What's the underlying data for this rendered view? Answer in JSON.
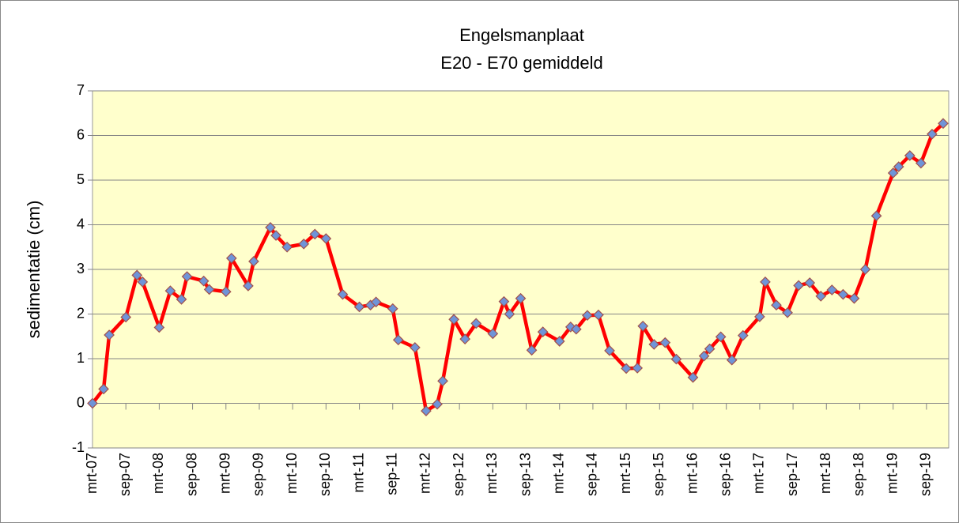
{
  "chart_data": {
    "type": "line",
    "title": "Engelsmanplaat",
    "subtitle": "E20 - E70 gemiddeld",
    "ylabel": "sedimentatie (cm)",
    "x": [
      "2007-03",
      "2007-05",
      "2007-06",
      "2007-09",
      "2007-11",
      "2007-12",
      "2008-03",
      "2008-05",
      "2008-07",
      "2008-08",
      "2008-11",
      "2008-12",
      "2009-03",
      "2009-04",
      "2009-07",
      "2009-08",
      "2009-11",
      "2009-12",
      "2010-02",
      "2010-05",
      "2010-07",
      "2010-09",
      "2010-12",
      "2011-03",
      "2011-05",
      "2011-06",
      "2011-09",
      "2011-10",
      "2012-01",
      "2012-03",
      "2012-05",
      "2012-06",
      "2012-08",
      "2012-10",
      "2012-12",
      "2013-03",
      "2013-05",
      "2013-06",
      "2013-08",
      "2013-10",
      "2013-12",
      "2014-03",
      "2014-05",
      "2014-06",
      "2014-08",
      "2014-10",
      "2014-12",
      "2015-03",
      "2015-05",
      "2015-06",
      "2015-08",
      "2015-10",
      "2015-12",
      "2016-03",
      "2016-05",
      "2016-06",
      "2016-08",
      "2016-10",
      "2016-12",
      "2017-03",
      "2017-04",
      "2017-06",
      "2017-08",
      "2017-10",
      "2017-12",
      "2018-02",
      "2018-04",
      "2018-06",
      "2018-08",
      "2018-10",
      "2018-12",
      "2019-03",
      "2019-04",
      "2019-06",
      "2019-08",
      "2019-10",
      "2019-12"
    ],
    "series": [
      {
        "name": "E20 - E70 gemiddeld",
        "color": "#ff0000",
        "marker_color": "#6f94d8",
        "marker_edge": "#a0504d",
        "values": [
          0,
          0.32,
          1.53,
          1.93,
          2.87,
          2.72,
          1.7,
          2.52,
          2.33,
          2.84,
          2.74,
          2.55,
          2.5,
          3.25,
          2.63,
          3.18,
          3.94,
          3.76,
          3.5,
          3.57,
          3.79,
          3.69,
          2.44,
          2.16,
          2.2,
          2.27,
          2.12,
          1.42,
          1.25,
          -0.17,
          -0.02,
          0.5,
          1.88,
          1.44,
          1.79,
          1.56,
          2.28,
          2.0,
          2.35,
          1.19,
          1.6,
          1.39,
          1.71,
          1.66,
          1.97,
          1.98,
          1.18,
          0.78,
          0.79,
          1.73,
          1.32,
          1.36,
          0.99,
          0.58,
          1.06,
          1.22,
          1.49,
          0.97,
          1.52,
          1.94,
          2.72,
          2.2,
          2.03,
          2.64,
          2.7,
          2.4,
          2.54,
          2.44,
          2.35,
          3.0,
          4.2,
          5.16,
          5.3,
          5.55,
          5.38,
          6.03,
          6.27
        ]
      }
    ],
    "xlim": [
      "2007-03",
      "2020-01"
    ],
    "xticks": [
      {
        "value": "2007-03",
        "label": "mrt-07"
      },
      {
        "value": "2007-09",
        "label": "sep-07"
      },
      {
        "value": "2008-03",
        "label": "mrt-08"
      },
      {
        "value": "2008-09",
        "label": "sep-08"
      },
      {
        "value": "2009-03",
        "label": "mrt-09"
      },
      {
        "value": "2009-09",
        "label": "sep-09"
      },
      {
        "value": "2010-03",
        "label": "mrt-10"
      },
      {
        "value": "2010-09",
        "label": "sep-10"
      },
      {
        "value": "2011-03",
        "label": "mrt-11"
      },
      {
        "value": "2011-09",
        "label": "sep-11"
      },
      {
        "value": "2012-03",
        "label": "mrt-12"
      },
      {
        "value": "2012-09",
        "label": "sep-12"
      },
      {
        "value": "2013-03",
        "label": "mrt-13"
      },
      {
        "value": "2013-09",
        "label": "sep-13"
      },
      {
        "value": "2014-03",
        "label": "mrt-14"
      },
      {
        "value": "2014-09",
        "label": "sep-14"
      },
      {
        "value": "2015-03",
        "label": "mrt-15"
      },
      {
        "value": "2015-09",
        "label": "sep-15"
      },
      {
        "value": "2016-03",
        "label": "mrt-16"
      },
      {
        "value": "2016-09",
        "label": "sep-16"
      },
      {
        "value": "2017-03",
        "label": "mrt-17"
      },
      {
        "value": "2017-09",
        "label": "sep-17"
      },
      {
        "value": "2018-03",
        "label": "mrt-18"
      },
      {
        "value": "2018-09",
        "label": "sep-18"
      },
      {
        "value": "2019-03",
        "label": "mrt-19"
      },
      {
        "value": "2019-09",
        "label": "sep-19"
      }
    ],
    "ylim": [
      -1,
      7
    ],
    "yticks": [
      -1,
      0,
      1,
      2,
      3,
      4,
      5,
      6,
      7
    ],
    "grid": true,
    "plot_background": "#ffffcc"
  }
}
